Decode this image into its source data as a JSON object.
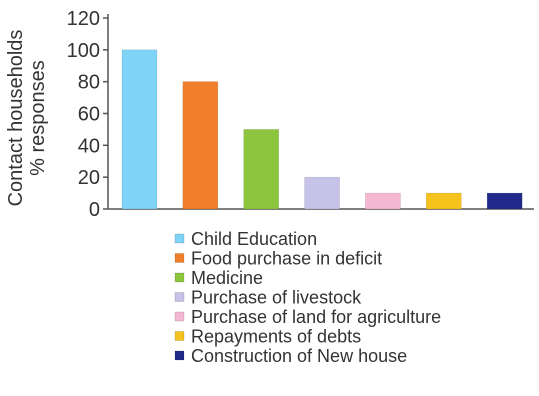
{
  "chart_data": {
    "type": "bar",
    "ylabel": [
      "Contact households",
      "% responses"
    ],
    "ylim": [
      0,
      120
    ],
    "yticks": [
      0,
      20,
      40,
      60,
      80,
      100,
      120
    ],
    "grid": false,
    "legend_position": "bottom",
    "categories": [
      "Child Education",
      "Food purchase in deficit",
      "Medicine",
      "Purchase of livestock",
      "Purchase of land for agriculture",
      "Repayments of debts",
      "Construction of New house"
    ],
    "values": [
      100,
      80,
      50,
      20,
      10,
      10,
      10
    ],
    "colors": [
      "#7fd3f7",
      "#f07e2a",
      "#8cc63f",
      "#c7c3e8",
      "#f5b8d2",
      "#f6c21c",
      "#1f2a8a"
    ]
  }
}
